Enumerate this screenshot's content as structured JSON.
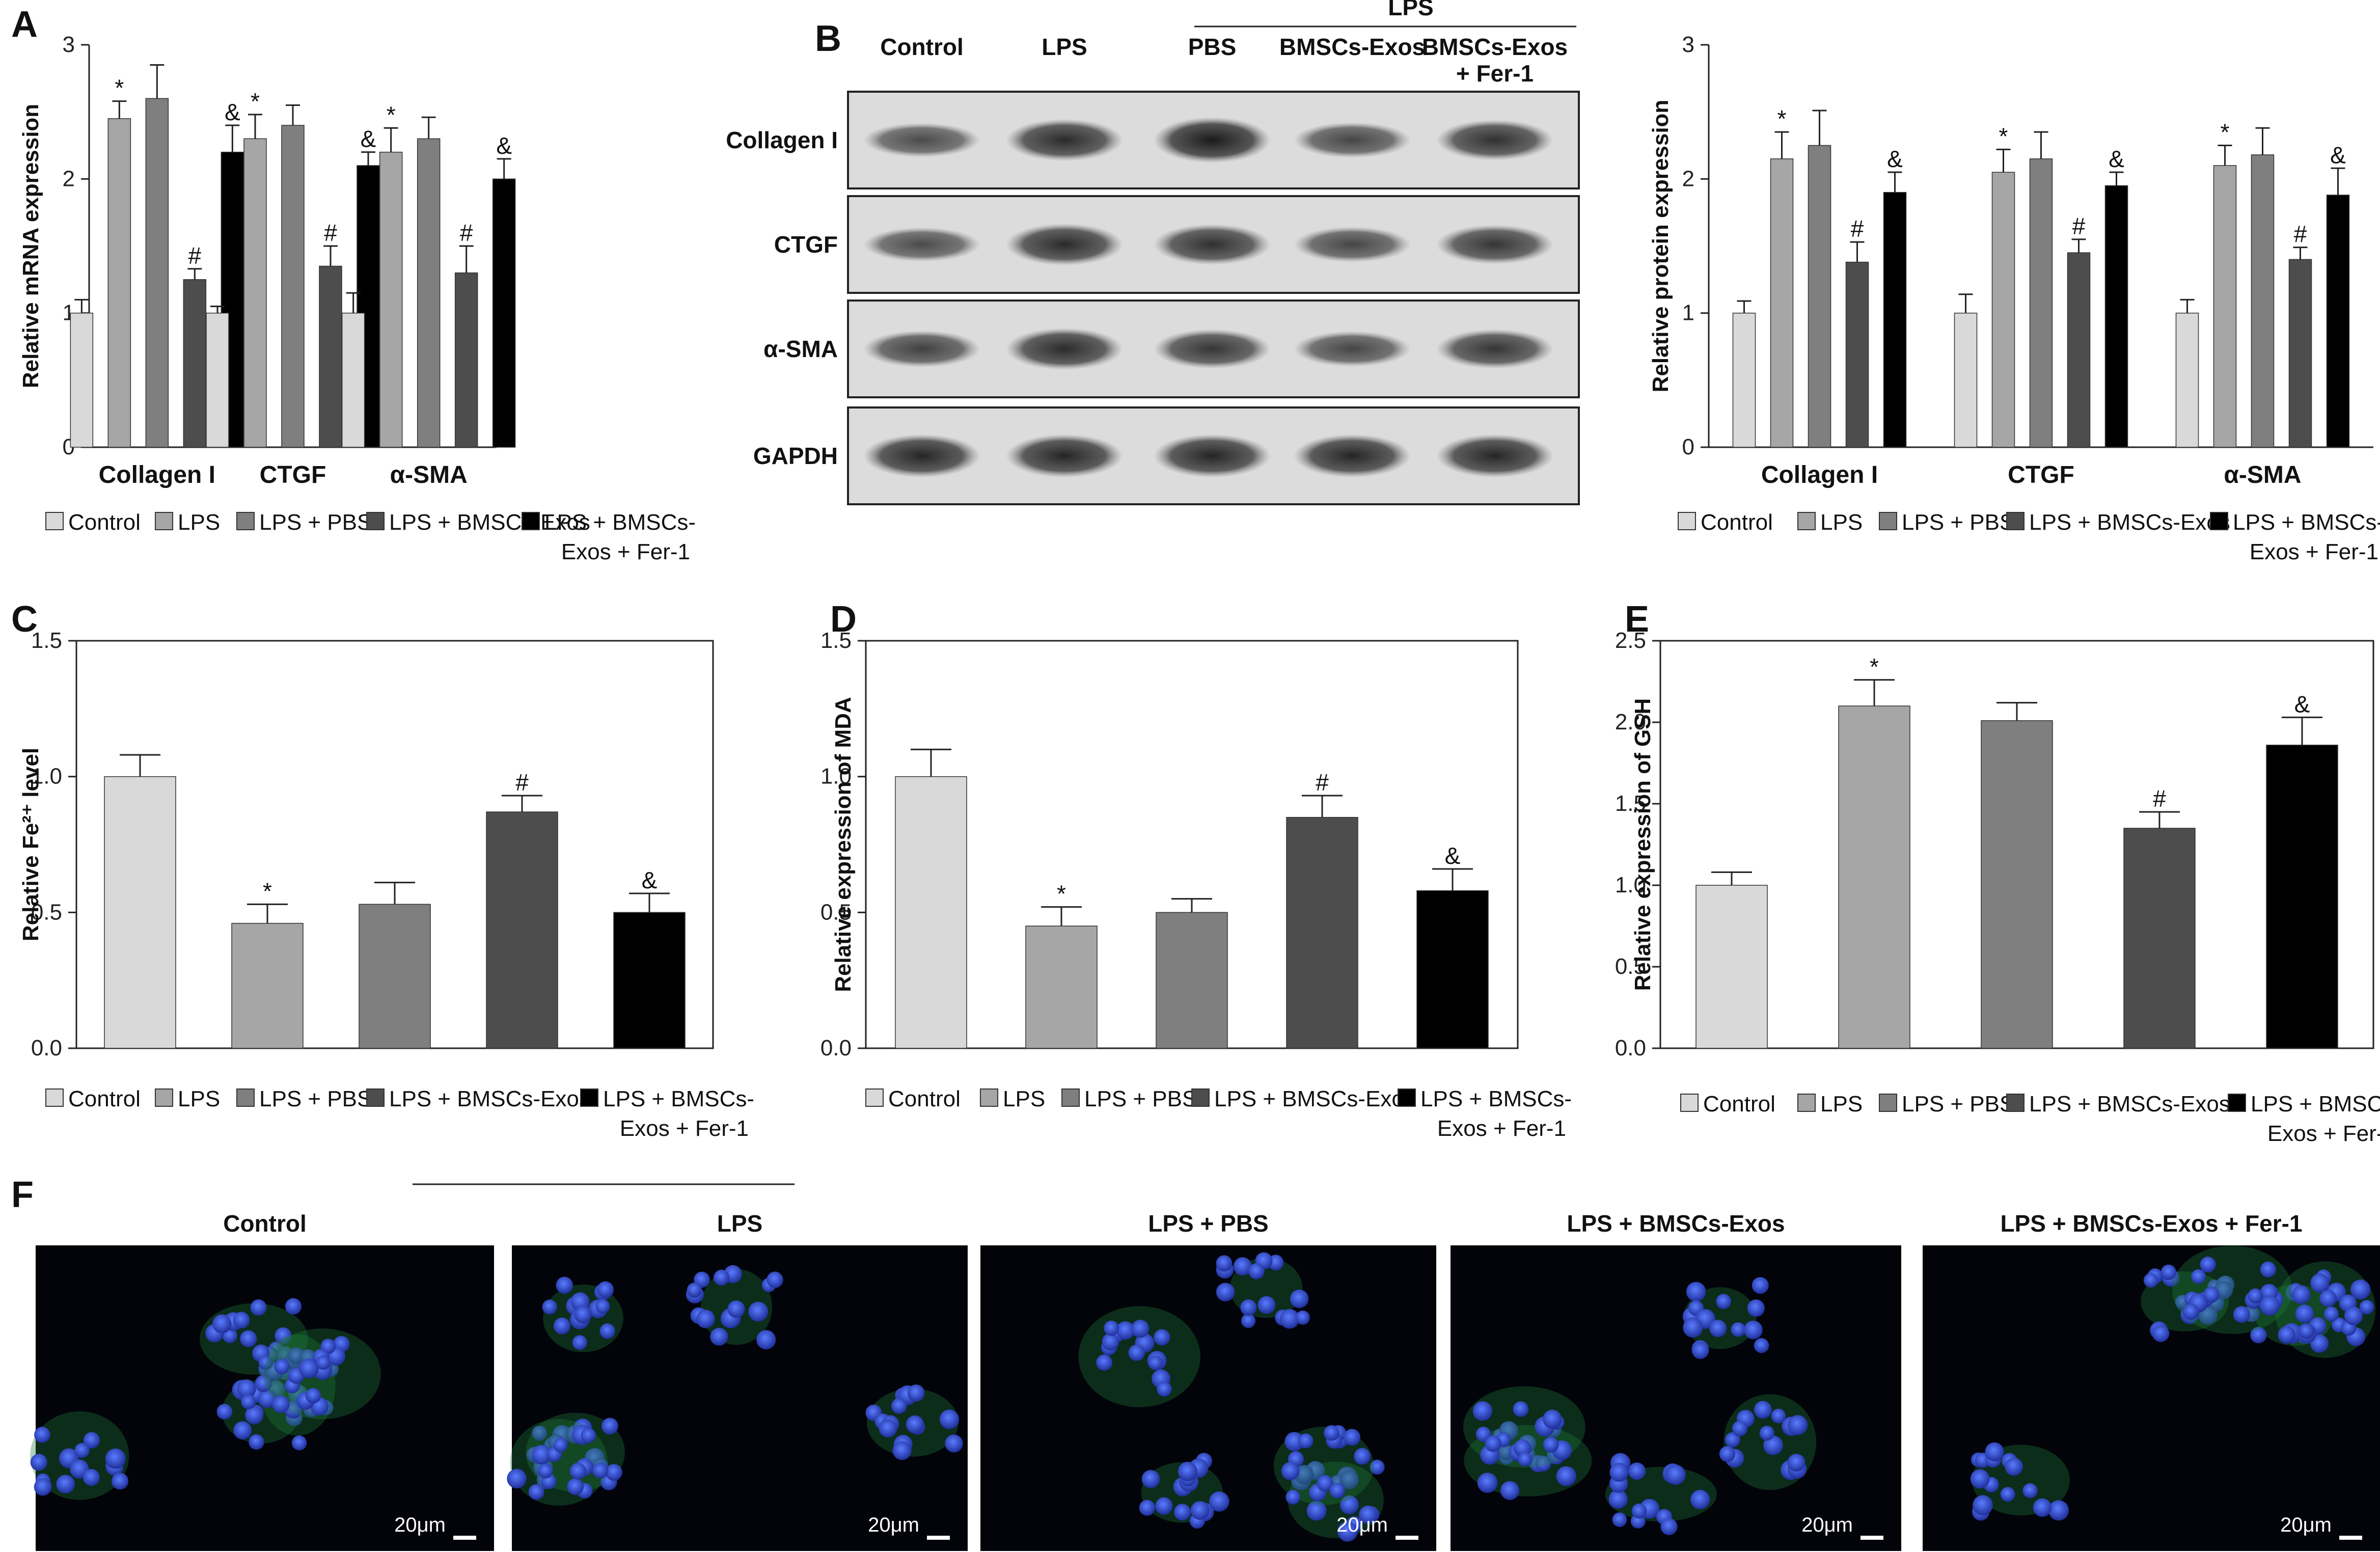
{
  "panel_labels": {
    "A": "A",
    "B": "B",
    "C": "C",
    "D": "D",
    "E": "E",
    "F": "F"
  },
  "colors": [
    "#d9d9d9",
    "#a6a6a6",
    "#7f7f7f",
    "#4d4d4d",
    "#000000"
  ],
  "legend": {
    "groups": [
      "Control",
      "LPS",
      "LPS + PBS",
      "LPS + BMSCs-Exos",
      "LPS + BMSCs-Exos + Fer-1"
    ],
    "labels": [
      "Control",
      "LPS",
      "LPS + PBS",
      "LPS + BMSCs-Exos",
      "LPS + BMSCs-"
    ],
    "last_line2": "Exos + Fer-1"
  },
  "western_blot": {
    "header_group": "LPS",
    "columns": [
      "Control",
      "LPS",
      "PBS",
      "BMSCs-Exos",
      "BMSCs-Exos"
    ],
    "last_col_line2": "+ Fer-1",
    "bands": [
      "Collagen I",
      "CTGF",
      "α-SMA",
      "GAPDH"
    ],
    "intensity": [
      [
        0.55,
        0.85,
        1.0,
        0.6,
        0.8
      ],
      [
        0.55,
        0.85,
        0.8,
        0.6,
        0.75
      ],
      [
        0.65,
        0.85,
        0.75,
        0.6,
        0.75
      ],
      [
        0.9,
        0.9,
        0.9,
        0.9,
        0.9
      ]
    ]
  },
  "chart_data": [
    {
      "id": "A",
      "type": "bar",
      "categories": [
        "Collagen I",
        "CTGF",
        "α-SMA"
      ],
      "series": [
        {
          "name": "Control",
          "values": [
            1.0,
            1.0,
            1.0
          ],
          "err": [
            0.1,
            0.05,
            0.15
          ],
          "marks": [
            "",
            "",
            ""
          ]
        },
        {
          "name": "LPS",
          "values": [
            2.45,
            2.3,
            2.2
          ],
          "err": [
            0.13,
            0.18,
            0.18
          ],
          "marks": [
            "*",
            "*",
            "*"
          ]
        },
        {
          "name": "LPS + PBS",
          "values": [
            2.6,
            2.4,
            2.3
          ],
          "err": [
            0.25,
            0.15,
            0.16
          ],
          "marks": [
            "",
            "",
            ""
          ]
        },
        {
          "name": "LPS + BMSCs-Exos",
          "values": [
            1.25,
            1.35,
            1.3
          ],
          "err": [
            0.08,
            0.15,
            0.2
          ],
          "marks": [
            "#",
            "#",
            "#"
          ]
        },
        {
          "name": "LPS + BMSCs-Exos + Fer-1",
          "values": [
            2.2,
            2.1,
            2.0
          ],
          "err": [
            0.2,
            0.1,
            0.15
          ],
          "marks": [
            "&",
            "&",
            "&"
          ]
        }
      ],
      "ylabel": "Relative mRNA expression",
      "ylim": [
        0,
        3
      ],
      "yticks": [
        "0",
        "1",
        "2",
        "3"
      ]
    },
    {
      "id": "B",
      "type": "bar",
      "categories": [
        "Collagen I",
        "CTGF",
        "α-SMA"
      ],
      "series": [
        {
          "name": "Control",
          "values": [
            1.0,
            1.0,
            1.0
          ],
          "err": [
            0.09,
            0.14,
            0.1
          ],
          "marks": [
            "",
            "",
            ""
          ]
        },
        {
          "name": "LPS",
          "values": [
            2.15,
            2.05,
            2.1
          ],
          "err": [
            0.2,
            0.17,
            0.15
          ],
          "marks": [
            "*",
            "*",
            "*"
          ]
        },
        {
          "name": "LPS + PBS",
          "values": [
            2.25,
            2.15,
            2.18
          ],
          "err": [
            0.26,
            0.2,
            0.2
          ],
          "marks": [
            "",
            "",
            ""
          ]
        },
        {
          "name": "LPS + BMSCs-Exos",
          "values": [
            1.38,
            1.45,
            1.4
          ],
          "err": [
            0.15,
            0.1,
            0.09
          ],
          "marks": [
            "#",
            "#",
            "#"
          ]
        },
        {
          "name": "LPS + BMSCs-Exos + Fer-1",
          "values": [
            1.9,
            1.95,
            1.88
          ],
          "err": [
            0.15,
            0.1,
            0.2
          ],
          "marks": [
            "&",
            "&",
            "&"
          ]
        }
      ],
      "ylabel": "Relative protein expression",
      "ylim": [
        0,
        3
      ],
      "yticks": [
        "0",
        "1",
        "2",
        "3"
      ]
    },
    {
      "id": "C",
      "type": "bar",
      "categories": [
        "Control",
        "LPS",
        "LPS + PBS",
        "LPS + BMSCs-Exos",
        "LPS + BMSCs-Exos + Fer-1"
      ],
      "values": [
        1.0,
        0.46,
        0.53,
        0.87,
        0.5
      ],
      "err": [
        0.08,
        0.07,
        0.08,
        0.06,
        0.07
      ],
      "marks": [
        "",
        "*",
        "",
        "#",
        "&"
      ],
      "ylabel": "Relative Fe²⁺ level",
      "ylim": [
        0,
        1.5
      ],
      "yticks": [
        "0.0",
        "0.5",
        "1.0",
        "1.5"
      ]
    },
    {
      "id": "D",
      "type": "bar",
      "categories": [
        "Control",
        "LPS",
        "LPS + PBS",
        "LPS + BMSCs-Exos",
        "LPS + BMSCs-Exos + Fer-1"
      ],
      "values": [
        1.0,
        0.45,
        0.5,
        0.85,
        0.58
      ],
      "err": [
        0.1,
        0.07,
        0.05,
        0.08,
        0.08
      ],
      "marks": [
        "",
        "*",
        "",
        "#",
        "&"
      ],
      "ylabel": "Relative expression of MDA",
      "ylim": [
        0,
        1.5
      ],
      "yticks": [
        "0.0",
        "0.5",
        "1.0",
        "1.5"
      ]
    },
    {
      "id": "E",
      "type": "bar",
      "categories": [
        "Control",
        "LPS",
        "LPS + PBS",
        "LPS + BMSCs-Exos",
        "LPS + BMSCs-Exos + Fer-1"
      ],
      "values": [
        1.0,
        2.1,
        2.01,
        1.35,
        1.86
      ],
      "err": [
        0.08,
        0.16,
        0.11,
        0.1,
        0.17
      ],
      "marks": [
        "",
        "*",
        "",
        "#",
        "&"
      ],
      "ylabel": "Relative expression of GSH",
      "ylim": [
        0,
        2.5
      ],
      "yticks": [
        "0.0",
        "0.5",
        "1.0",
        "1.5",
        "2.0",
        "2.5"
      ]
    }
  ],
  "fluorescence": {
    "titles": [
      "Control",
      "LPS",
      "LPS + PBS",
      "LPS + BMSCs-Exos",
      "LPS + BMSCs-Exos + Fer-1"
    ],
    "scale_bar": "20μm"
  }
}
